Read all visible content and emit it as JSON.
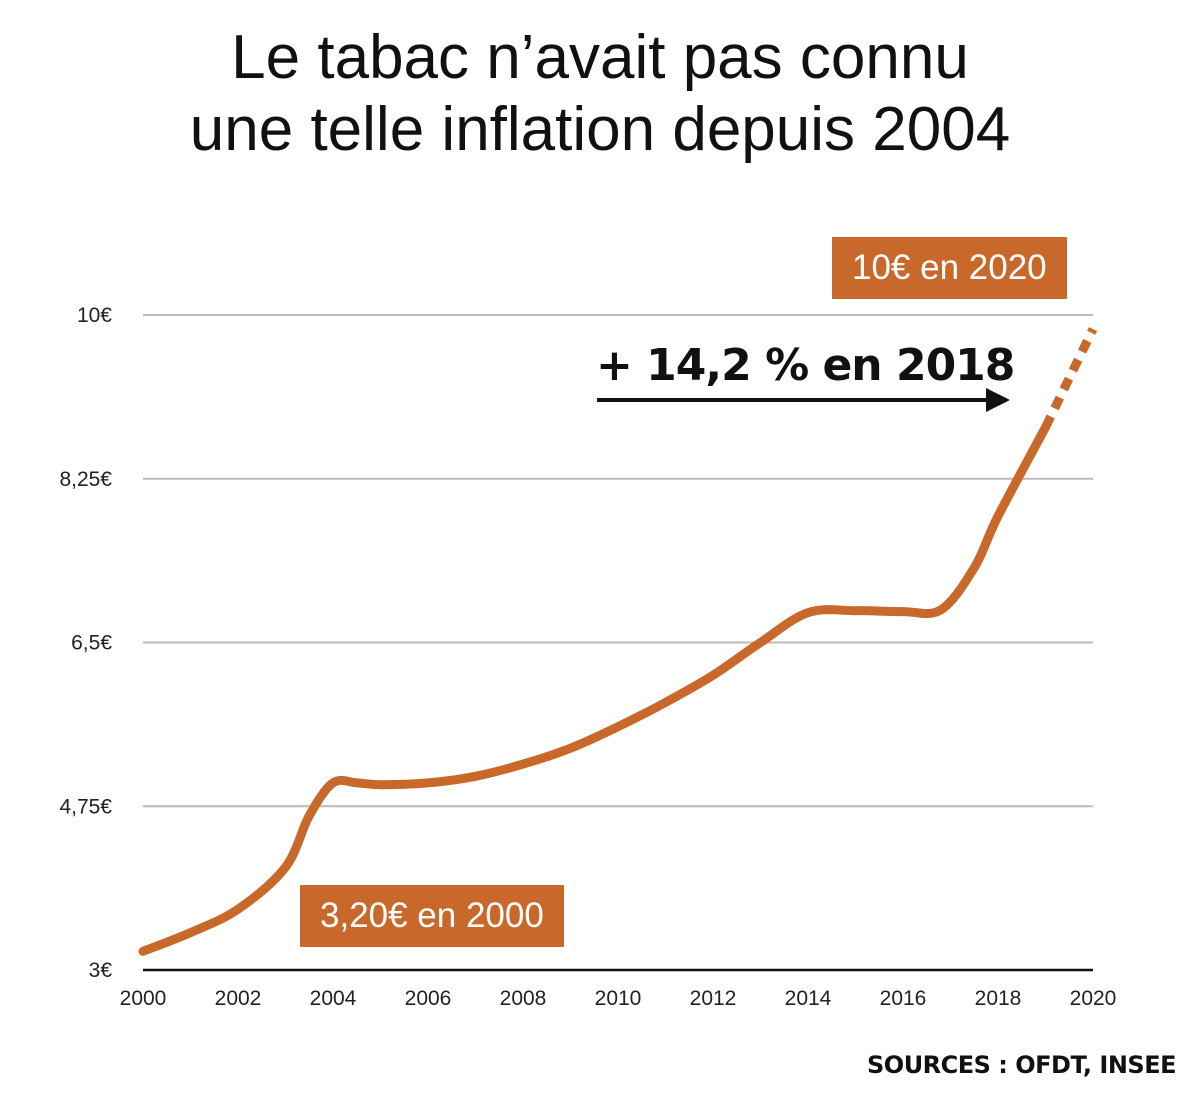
{
  "title": {
    "line1": "Le tabac n’avait pas connu",
    "line2": "une telle inflation depuis 2004"
  },
  "badges": {
    "end": "10€ en 2020",
    "start": "3,20€ en 2000"
  },
  "annotation": "+ 14,2 % en 2018",
  "sources": "SOURCES : OFDT, INSEE",
  "colors": {
    "line": "#c8692b",
    "grid": "#bbbbbb",
    "axis": "#111111",
    "text": "#111111"
  },
  "chart_data": {
    "type": "line",
    "title": "Le tabac n’avait pas connu une telle inflation depuis 2004",
    "xlabel": "",
    "ylabel": "",
    "xlim": [
      2000,
      2020
    ],
    "ylim": [
      3,
      10
    ],
    "x_ticks": [
      "2000",
      "2002",
      "2004",
      "2006",
      "2008",
      "2010",
      "2012",
      "2014",
      "2016",
      "2018",
      "2020"
    ],
    "y_ticks": [
      {
        "value": 3,
        "label": "3€"
      },
      {
        "value": 4.75,
        "label": "4,75€"
      },
      {
        "value": 6.5,
        "label": "6,5€"
      },
      {
        "value": 8.25,
        "label": "8,25€"
      },
      {
        "value": 10,
        "label": "10€"
      }
    ],
    "grid": true,
    "series": [
      {
        "points": [
          {
            "x": 2000,
            "y": 3.2
          },
          {
            "x": 2001,
            "y": 3.4
          },
          {
            "x": 2002,
            "y": 3.65
          },
          {
            "x": 2003,
            "y": 4.1
          },
          {
            "x": 2003.5,
            "y": 4.65
          },
          {
            "x": 2004,
            "y": 5.0
          },
          {
            "x": 2004.5,
            "y": 5.0
          },
          {
            "x": 2005,
            "y": 4.98
          },
          {
            "x": 2006,
            "y": 5.0
          },
          {
            "x": 2007,
            "y": 5.07
          },
          {
            "x": 2008,
            "y": 5.2
          },
          {
            "x": 2009,
            "y": 5.37
          },
          {
            "x": 2010,
            "y": 5.6
          },
          {
            "x": 2011,
            "y": 5.86
          },
          {
            "x": 2012,
            "y": 6.15
          },
          {
            "x": 2013,
            "y": 6.5
          },
          {
            "x": 2014,
            "y": 6.82
          },
          {
            "x": 2015,
            "y": 6.84
          },
          {
            "x": 2016,
            "y": 6.83
          },
          {
            "x": 2016.8,
            "y": 6.85
          },
          {
            "x": 2017.5,
            "y": 7.3
          },
          {
            "x": 2018,
            "y": 7.85
          },
          {
            "x": 2019,
            "y": 8.8
          }
        ],
        "projection": [
          {
            "x": 2019,
            "y": 8.8
          },
          {
            "x": 2020,
            "y": 9.85
          }
        ]
      }
    ]
  }
}
